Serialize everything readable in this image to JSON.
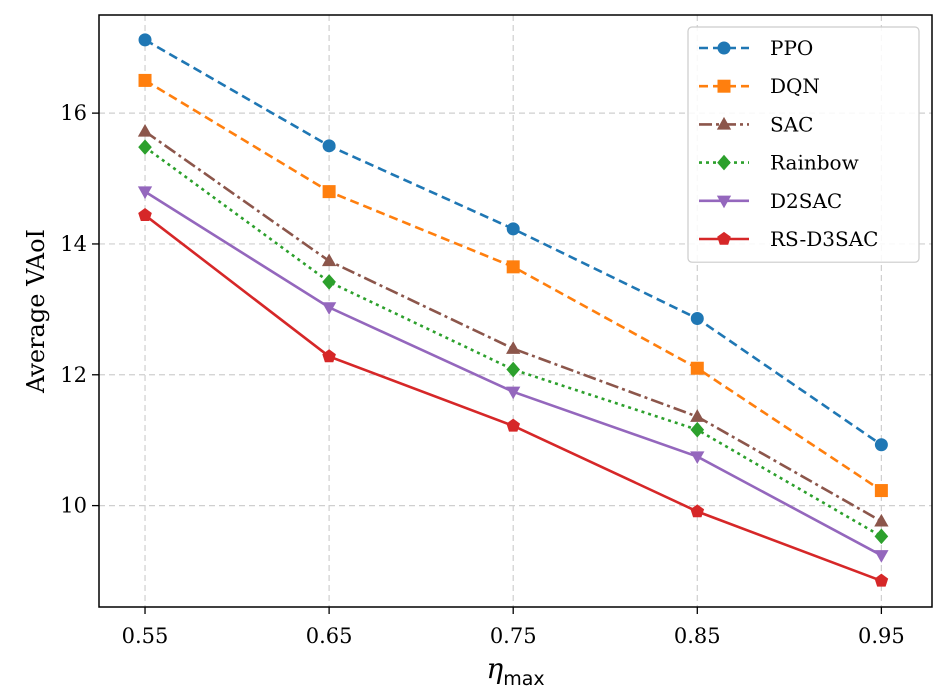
{
  "chart_data": {
    "type": "line",
    "title": "",
    "xlabel_symbol": "η",
    "xlabel_subscript": "max",
    "ylabel": "Average VAoI",
    "x": [
      0.55,
      0.65,
      0.75,
      0.85,
      0.95
    ],
    "x_tick_labels": [
      "0.55",
      "0.65",
      "0.75",
      "0.85",
      "0.95"
    ],
    "y_ticks": [
      10,
      12,
      14,
      16
    ],
    "y_tick_labels": [
      "10",
      "12",
      "14",
      "16"
    ],
    "xlim": [
      0.525,
      0.9775
    ],
    "ylim": [
      8.45,
      17.5
    ],
    "grid": true,
    "legend_position": "top-right",
    "series": [
      {
        "name": "PPO",
        "values": [
          17.12,
          15.5,
          14.23,
          12.86,
          10.93
        ],
        "color": "#1f77b4",
        "dash": "9,5",
        "marker": "circle"
      },
      {
        "name": "DQN",
        "values": [
          16.5,
          14.8,
          13.65,
          12.1,
          10.23
        ],
        "color": "#ff7f0e",
        "dash": "9,5",
        "marker": "square"
      },
      {
        "name": "SAC",
        "values": [
          15.72,
          13.74,
          12.4,
          11.36,
          9.76
        ],
        "color": "#8c564b",
        "dash": "13,4,3,4",
        "marker": "triangle-up"
      },
      {
        "name": "Rainbow",
        "values": [
          15.48,
          13.42,
          12.08,
          11.16,
          9.53
        ],
        "color": "#2ca02c",
        "dash": "3,4",
        "marker": "diamond"
      },
      {
        "name": "D2SAC",
        "values": [
          14.8,
          13.03,
          11.74,
          10.75,
          9.24
        ],
        "color": "#9467bd",
        "dash": "",
        "marker": "triangle-down"
      },
      {
        "name": "RS-D3SAC",
        "values": [
          14.44,
          12.28,
          11.22,
          9.91,
          8.85
        ],
        "color": "#d62728",
        "dash": "",
        "marker": "pentagon"
      }
    ]
  }
}
